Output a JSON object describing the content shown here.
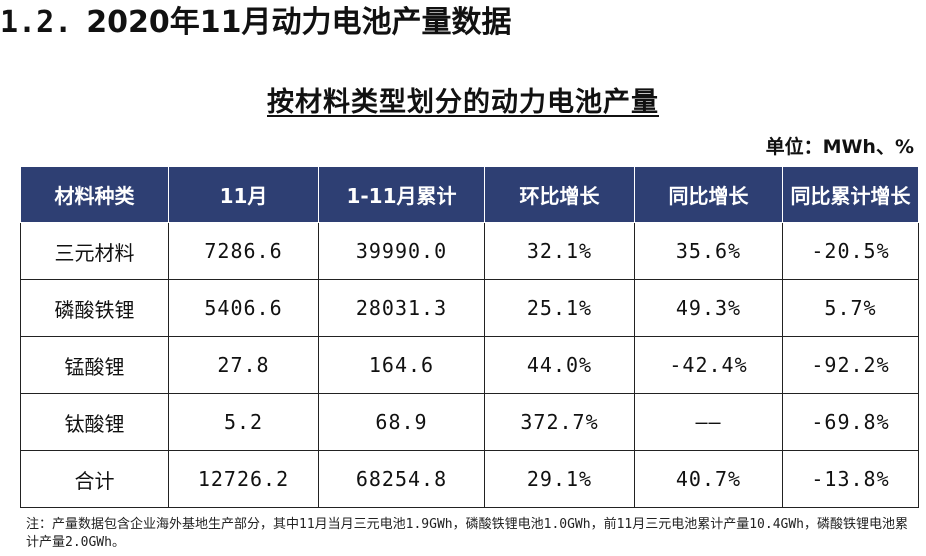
{
  "section": {
    "number": "1.2.",
    "title": "2020年11月动力电池产量数据"
  },
  "table_title": "按材料类型划分的动力电池产量",
  "unit": "单位：MWh、%",
  "table": {
    "headers": [
      "材料种类",
      "11月",
      "1-11月累计",
      "环比增长",
      "同比增长",
      "同比累计增长"
    ],
    "rows": [
      [
        "三元材料",
        "7286.6",
        "39990.0",
        "32.1%",
        "35.6%",
        "-20.5%"
      ],
      [
        "磷酸铁锂",
        "5406.6",
        "28031.3",
        "25.1%",
        "49.3%",
        "5.7%"
      ],
      [
        "锰酸锂",
        "27.8",
        "164.6",
        "44.0%",
        "-42.4%",
        "-92.2%"
      ],
      [
        "钛酸锂",
        "5.2",
        "68.9",
        "372.7%",
        "——",
        "-69.8%"
      ],
      [
        "合计",
        "12726.2",
        "68254.8",
        "29.1%",
        "40.7%",
        "-13.8%"
      ]
    ]
  },
  "note": "注：产量数据包含企业海外基地生产部分，其中11月当月三元电池1.9GWh，磷酸铁锂电池1.0GWh，前11月三元电池累计产量10.4GWh，磷酸铁锂电池累计产量2.0GWh。"
}
